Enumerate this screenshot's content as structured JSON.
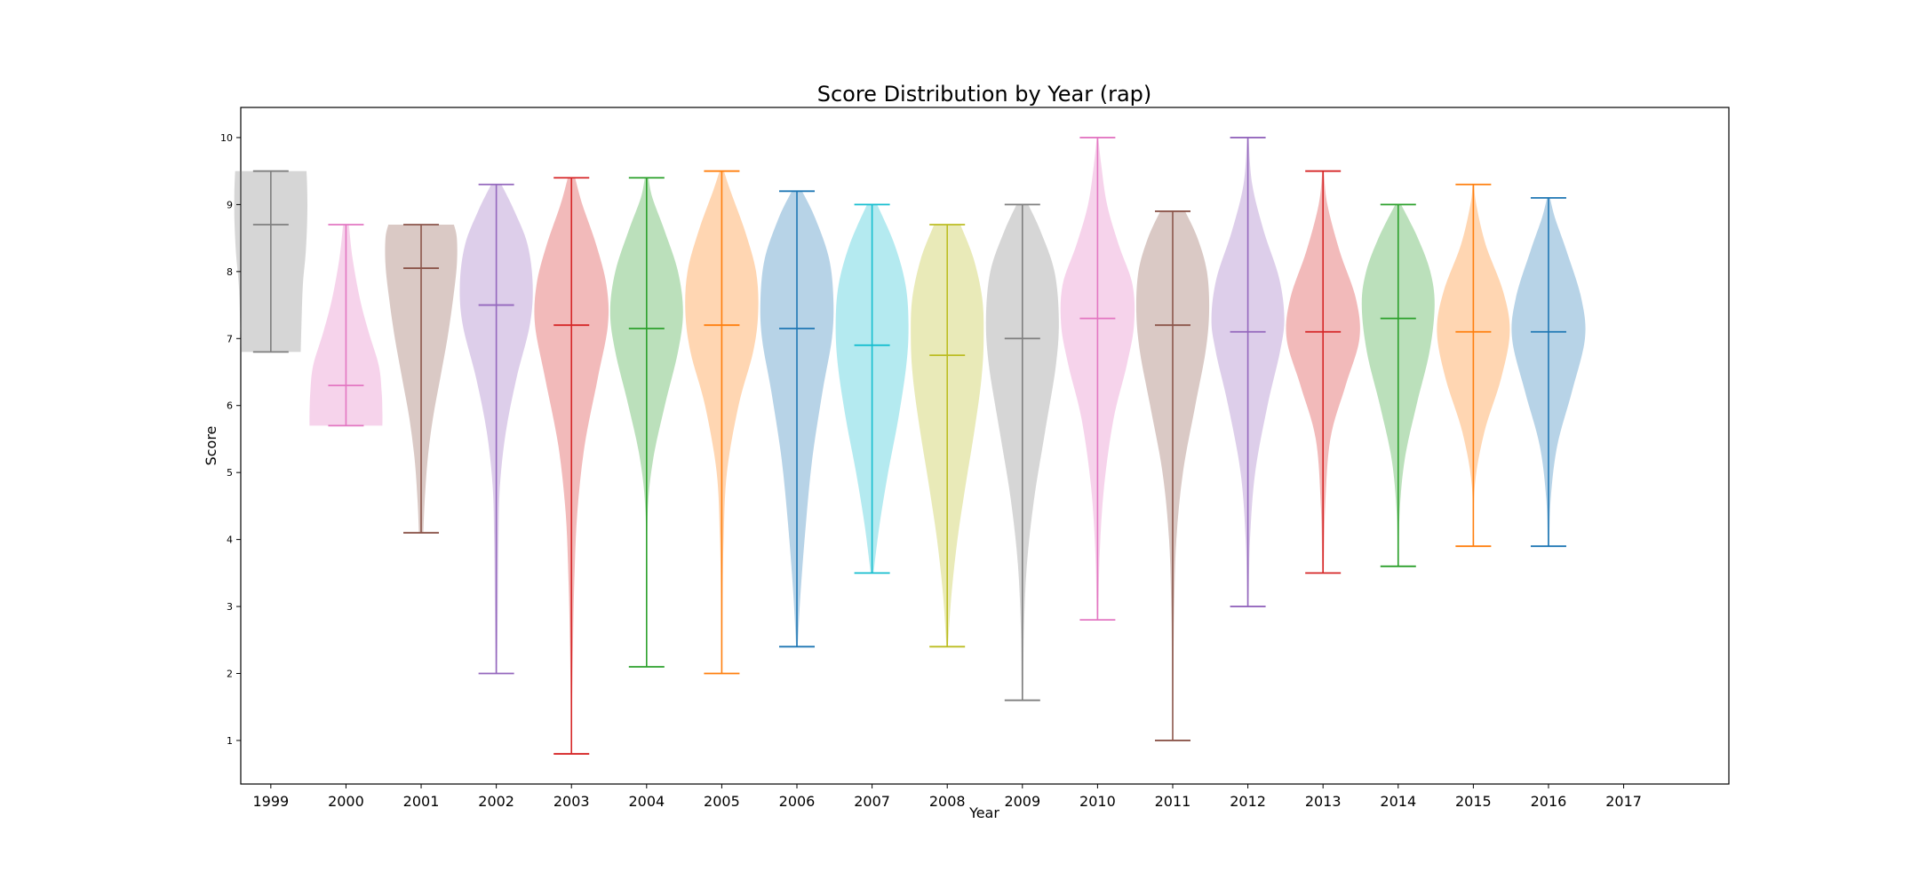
{
  "chart_data": {
    "type": "violin",
    "title": "Score Distribution by Year (rap)",
    "xlabel": "Year",
    "ylabel": "Score",
    "ylim": [
      0.35,
      10.45
    ],
    "xlim": [
      0.6,
      20.4
    ],
    "y_ticks": [
      1,
      2,
      3,
      4,
      5,
      6,
      7,
      8,
      9,
      10
    ],
    "x_ticks": [
      "1999",
      "2000",
      "2001",
      "2002",
      "2003",
      "2004",
      "2005",
      "2006",
      "2007",
      "2008",
      "2009",
      "2010",
      "2011",
      "2012",
      "2013",
      "2014",
      "2015",
      "2016",
      "2017"
    ],
    "grid": false,
    "series": [
      {
        "year": "1999",
        "color": "#7f7f7f",
        "min": 6.8,
        "max": 9.5,
        "median": 8.7,
        "density": [
          [
            6.8,
            0.82
          ],
          [
            7.2,
            0.84
          ],
          [
            7.8,
            0.88
          ],
          [
            8.3,
            0.96
          ],
          [
            8.8,
            1.0
          ],
          [
            9.2,
            1.0
          ],
          [
            9.5,
            0.98
          ]
        ]
      },
      {
        "year": "2000",
        "color": "#e377c2",
        "min": 5.7,
        "max": 8.7,
        "median": 6.3,
        "density": [
          [
            5.7,
            1.0
          ],
          [
            5.9,
            1.0
          ],
          [
            6.2,
            0.98
          ],
          [
            6.6,
            0.9
          ],
          [
            7.1,
            0.62
          ],
          [
            7.6,
            0.38
          ],
          [
            8.2,
            0.18
          ],
          [
            8.7,
            0.08
          ]
        ]
      },
      {
        "year": "2001",
        "color": "#8c564b",
        "min": 4.1,
        "max": 8.7,
        "median": 8.05,
        "density": [
          [
            4.1,
            0.06
          ],
          [
            4.6,
            0.1
          ],
          [
            5.2,
            0.18
          ],
          [
            5.8,
            0.32
          ],
          [
            6.4,
            0.52
          ],
          [
            7.0,
            0.72
          ],
          [
            7.6,
            0.88
          ],
          [
            8.1,
            0.98
          ],
          [
            8.5,
            0.98
          ],
          [
            8.7,
            0.9
          ]
        ]
      },
      {
        "year": "2002",
        "color": "#9467bd",
        "min": 2.0,
        "max": 9.3,
        "median": 7.5,
        "density": [
          [
            2.0,
            0.02
          ],
          [
            3.0,
            0.04
          ],
          [
            4.0,
            0.06
          ],
          [
            4.8,
            0.1
          ],
          [
            5.6,
            0.26
          ],
          [
            6.4,
            0.55
          ],
          [
            7.2,
            0.92
          ],
          [
            7.8,
            1.0
          ],
          [
            8.4,
            0.86
          ],
          [
            8.9,
            0.5
          ],
          [
            9.3,
            0.14
          ]
        ]
      },
      {
        "year": "2003",
        "color": "#d62728",
        "min": 0.8,
        "max": 9.4,
        "median": 7.2,
        "density": [
          [
            0.8,
            0.01
          ],
          [
            1.6,
            0.02
          ],
          [
            2.4,
            0.04
          ],
          [
            3.4,
            0.08
          ],
          [
            4.4,
            0.16
          ],
          [
            5.4,
            0.36
          ],
          [
            6.4,
            0.72
          ],
          [
            7.2,
            1.0
          ],
          [
            7.8,
            0.96
          ],
          [
            8.4,
            0.68
          ],
          [
            9.0,
            0.3
          ],
          [
            9.4,
            0.1
          ]
        ]
      },
      {
        "year": "2004",
        "color": "#2ca02c",
        "min": 2.1,
        "max": 9.4,
        "median": 7.15,
        "density": [
          [
            2.1,
            0.01
          ],
          [
            3.2,
            0.02
          ],
          [
            4.4,
            0.03
          ],
          [
            5.2,
            0.18
          ],
          [
            6.0,
            0.5
          ],
          [
            6.8,
            0.86
          ],
          [
            7.4,
            1.0
          ],
          [
            8.0,
            0.86
          ],
          [
            8.6,
            0.5
          ],
          [
            9.1,
            0.16
          ],
          [
            9.4,
            0.05
          ]
        ]
      },
      {
        "year": "2005",
        "color": "#ff7f0e",
        "min": 2.0,
        "max": 9.5,
        "median": 7.2,
        "density": [
          [
            2.0,
            0.01
          ],
          [
            3.0,
            0.02
          ],
          [
            4.0,
            0.05
          ],
          [
            5.0,
            0.14
          ],
          [
            6.0,
            0.46
          ],
          [
            6.8,
            0.86
          ],
          [
            7.4,
            1.0
          ],
          [
            8.0,
            0.94
          ],
          [
            8.6,
            0.64
          ],
          [
            9.2,
            0.24
          ],
          [
            9.5,
            0.06
          ]
        ]
      },
      {
        "year": "2006",
        "color": "#1f77b4",
        "min": 2.4,
        "max": 9.2,
        "median": 7.15,
        "density": [
          [
            2.4,
            0.02
          ],
          [
            3.2,
            0.1
          ],
          [
            4.2,
            0.24
          ],
          [
            5.2,
            0.42
          ],
          [
            6.2,
            0.7
          ],
          [
            7.0,
            0.96
          ],
          [
            7.6,
            1.0
          ],
          [
            8.2,
            0.88
          ],
          [
            8.8,
            0.5
          ],
          [
            9.2,
            0.14
          ]
        ]
      },
      {
        "year": "2007",
        "color": "#17becf",
        "min": 3.5,
        "max": 9.0,
        "median": 6.9,
        "density": [
          [
            3.5,
            0.04
          ],
          [
            4.2,
            0.2
          ],
          [
            5.0,
            0.44
          ],
          [
            5.8,
            0.72
          ],
          [
            6.6,
            0.94
          ],
          [
            7.2,
            1.0
          ],
          [
            7.8,
            0.92
          ],
          [
            8.4,
            0.62
          ],
          [
            9.0,
            0.14
          ]
        ]
      },
      {
        "year": "2008",
        "color": "#bcbd22",
        "min": 2.4,
        "max": 8.7,
        "median": 6.75,
        "density": [
          [
            2.4,
            0.02
          ],
          [
            3.2,
            0.12
          ],
          [
            4.0,
            0.28
          ],
          [
            4.8,
            0.5
          ],
          [
            5.6,
            0.74
          ],
          [
            6.4,
            0.94
          ],
          [
            7.0,
            1.0
          ],
          [
            7.6,
            0.96
          ],
          [
            8.2,
            0.72
          ],
          [
            8.7,
            0.36
          ]
        ]
      },
      {
        "year": "2009",
        "color": "#7f7f7f",
        "min": 1.6,
        "max": 9.0,
        "median": 7.0,
        "density": [
          [
            1.6,
            0.02
          ],
          [
            2.6,
            0.04
          ],
          [
            3.6,
            0.12
          ],
          [
            4.6,
            0.32
          ],
          [
            5.6,
            0.62
          ],
          [
            6.6,
            0.92
          ],
          [
            7.3,
            1.0
          ],
          [
            8.0,
            0.88
          ],
          [
            8.6,
            0.5
          ],
          [
            9.0,
            0.16
          ]
        ]
      },
      {
        "year": "2010",
        "color": "#e377c2",
        "min": 2.8,
        "max": 10.0,
        "median": 7.3,
        "density": [
          [
            2.8,
            0.02
          ],
          [
            3.8,
            0.06
          ],
          [
            4.8,
            0.18
          ],
          [
            5.8,
            0.44
          ],
          [
            6.6,
            0.8
          ],
          [
            7.2,
            1.0
          ],
          [
            7.8,
            0.96
          ],
          [
            8.4,
            0.58
          ],
          [
            9.0,
            0.26
          ],
          [
            9.6,
            0.1
          ],
          [
            10.0,
            0.02
          ]
        ]
      },
      {
        "year": "2011",
        "color": "#8c564b",
        "min": 1.0,
        "max": 8.9,
        "median": 7.2,
        "density": [
          [
            1.0,
            0.01
          ],
          [
            2.0,
            0.02
          ],
          [
            3.0,
            0.04
          ],
          [
            4.0,
            0.1
          ],
          [
            5.0,
            0.28
          ],
          [
            6.0,
            0.62
          ],
          [
            6.8,
            0.9
          ],
          [
            7.4,
            1.0
          ],
          [
            8.0,
            0.94
          ],
          [
            8.5,
            0.68
          ],
          [
            8.9,
            0.34
          ]
        ]
      },
      {
        "year": "2012",
        "color": "#9467bd",
        "min": 3.0,
        "max": 10.0,
        "median": 7.1,
        "density": [
          [
            3.0,
            0.02
          ],
          [
            4.0,
            0.06
          ],
          [
            5.0,
            0.2
          ],
          [
            6.0,
            0.54
          ],
          [
            6.8,
            0.88
          ],
          [
            7.3,
            1.0
          ],
          [
            7.9,
            0.86
          ],
          [
            8.6,
            0.44
          ],
          [
            9.3,
            0.12
          ],
          [
            10.0,
            0.02
          ]
        ]
      },
      {
        "year": "2013",
        "color": "#d62728",
        "min": 3.5,
        "max": 9.5,
        "median": 7.1,
        "density": [
          [
            3.5,
            0.02
          ],
          [
            4.5,
            0.06
          ],
          [
            5.5,
            0.2
          ],
          [
            6.3,
            0.62
          ],
          [
            7.0,
            1.0
          ],
          [
            7.6,
            0.9
          ],
          [
            8.3,
            0.46
          ],
          [
            9.0,
            0.12
          ],
          [
            9.5,
            0.02
          ]
        ]
      },
      {
        "year": "2014",
        "color": "#2ca02c",
        "min": 3.6,
        "max": 9.0,
        "median": 7.3,
        "density": [
          [
            3.6,
            0.02
          ],
          [
            4.4,
            0.04
          ],
          [
            5.2,
            0.18
          ],
          [
            6.0,
            0.5
          ],
          [
            6.8,
            0.86
          ],
          [
            7.5,
            1.0
          ],
          [
            8.0,
            0.88
          ],
          [
            8.5,
            0.54
          ],
          [
            9.0,
            0.08
          ]
        ]
      },
      {
        "year": "2015",
        "color": "#ff7f0e",
        "min": 3.9,
        "max": 9.3,
        "median": 7.1,
        "density": [
          [
            3.9,
            0.02
          ],
          [
            4.8,
            0.04
          ],
          [
            5.6,
            0.3
          ],
          [
            6.4,
            0.76
          ],
          [
            7.1,
            1.0
          ],
          [
            7.7,
            0.82
          ],
          [
            8.4,
            0.34
          ],
          [
            9.0,
            0.08
          ],
          [
            9.3,
            0.02
          ]
        ]
      },
      {
        "year": "2016",
        "color": "#1f77b4",
        "min": 3.9,
        "max": 9.1,
        "median": 7.1,
        "density": [
          [
            3.9,
            0.02
          ],
          [
            4.6,
            0.06
          ],
          [
            5.4,
            0.24
          ],
          [
            6.2,
            0.64
          ],
          [
            7.0,
            1.0
          ],
          [
            7.6,
            0.9
          ],
          [
            8.3,
            0.5
          ],
          [
            8.8,
            0.18
          ],
          [
            9.1,
            0.04
          ]
        ]
      }
    ]
  }
}
